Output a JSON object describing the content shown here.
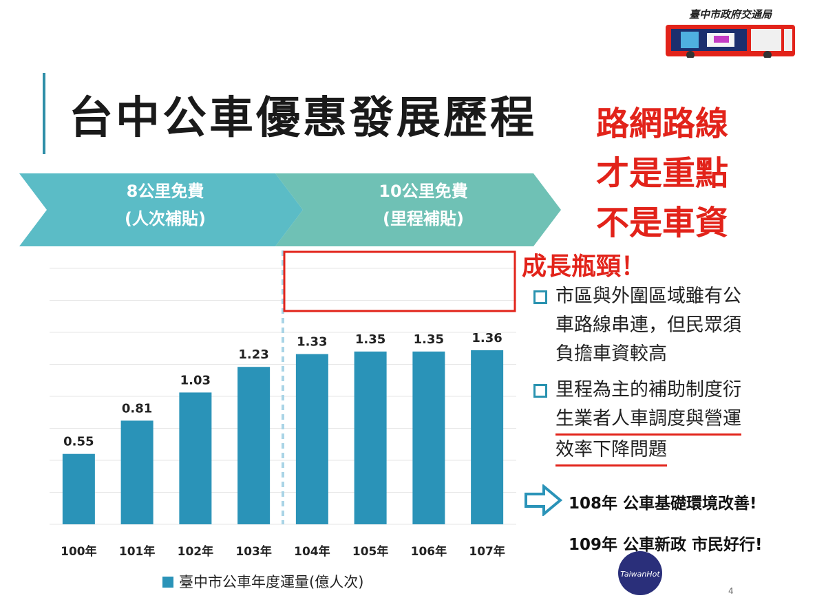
{
  "org": {
    "name": "臺中市政府交通局"
  },
  "title": "台中公車優惠發展歷程",
  "slogan": [
    "路網路線",
    "才是重點",
    "不是車資"
  ],
  "phases": [
    {
      "line1": "8公里免費",
      "line2": "(人次補貼)"
    },
    {
      "line1": "10公里免費",
      "line2": "(里程補貼)"
    }
  ],
  "bottleneck": "成長瓶頸！",
  "bullets": [
    {
      "lines": [
        "市區與外圍區域雖有公",
        "車路線串連，但民眾須",
        "負擔車資較高"
      ]
    },
    {
      "lines": [
        "里程為主的補助制度衍",
        "生業者人車調度與營運",
        "效率下降問題"
      ]
    }
  ],
  "plans": [
    "108年 公車基礎環境改善!",
    "109年 公車新政 市民好行!"
  ],
  "watermark": "TaiwanHot",
  "page_number": "4",
  "colors": {
    "bar": "#2a93b8",
    "chevron1": "#5bbcc6",
    "chevron2": "#6fc1b5",
    "highlight": "#e2231a"
  },
  "chart_data": {
    "type": "bar",
    "categories": [
      "100年",
      "101年",
      "102年",
      "103年",
      "104年",
      "105年",
      "106年",
      "107年"
    ],
    "series": [
      {
        "name": "臺中市公車年度運量(億人次)",
        "values": [
          0.55,
          0.81,
          1.03,
          1.23,
          1.33,
          1.35,
          1.35,
          1.36
        ]
      }
    ],
    "ylim": [
      0,
      2
    ],
    "grid": true,
    "legend": "bottom"
  }
}
